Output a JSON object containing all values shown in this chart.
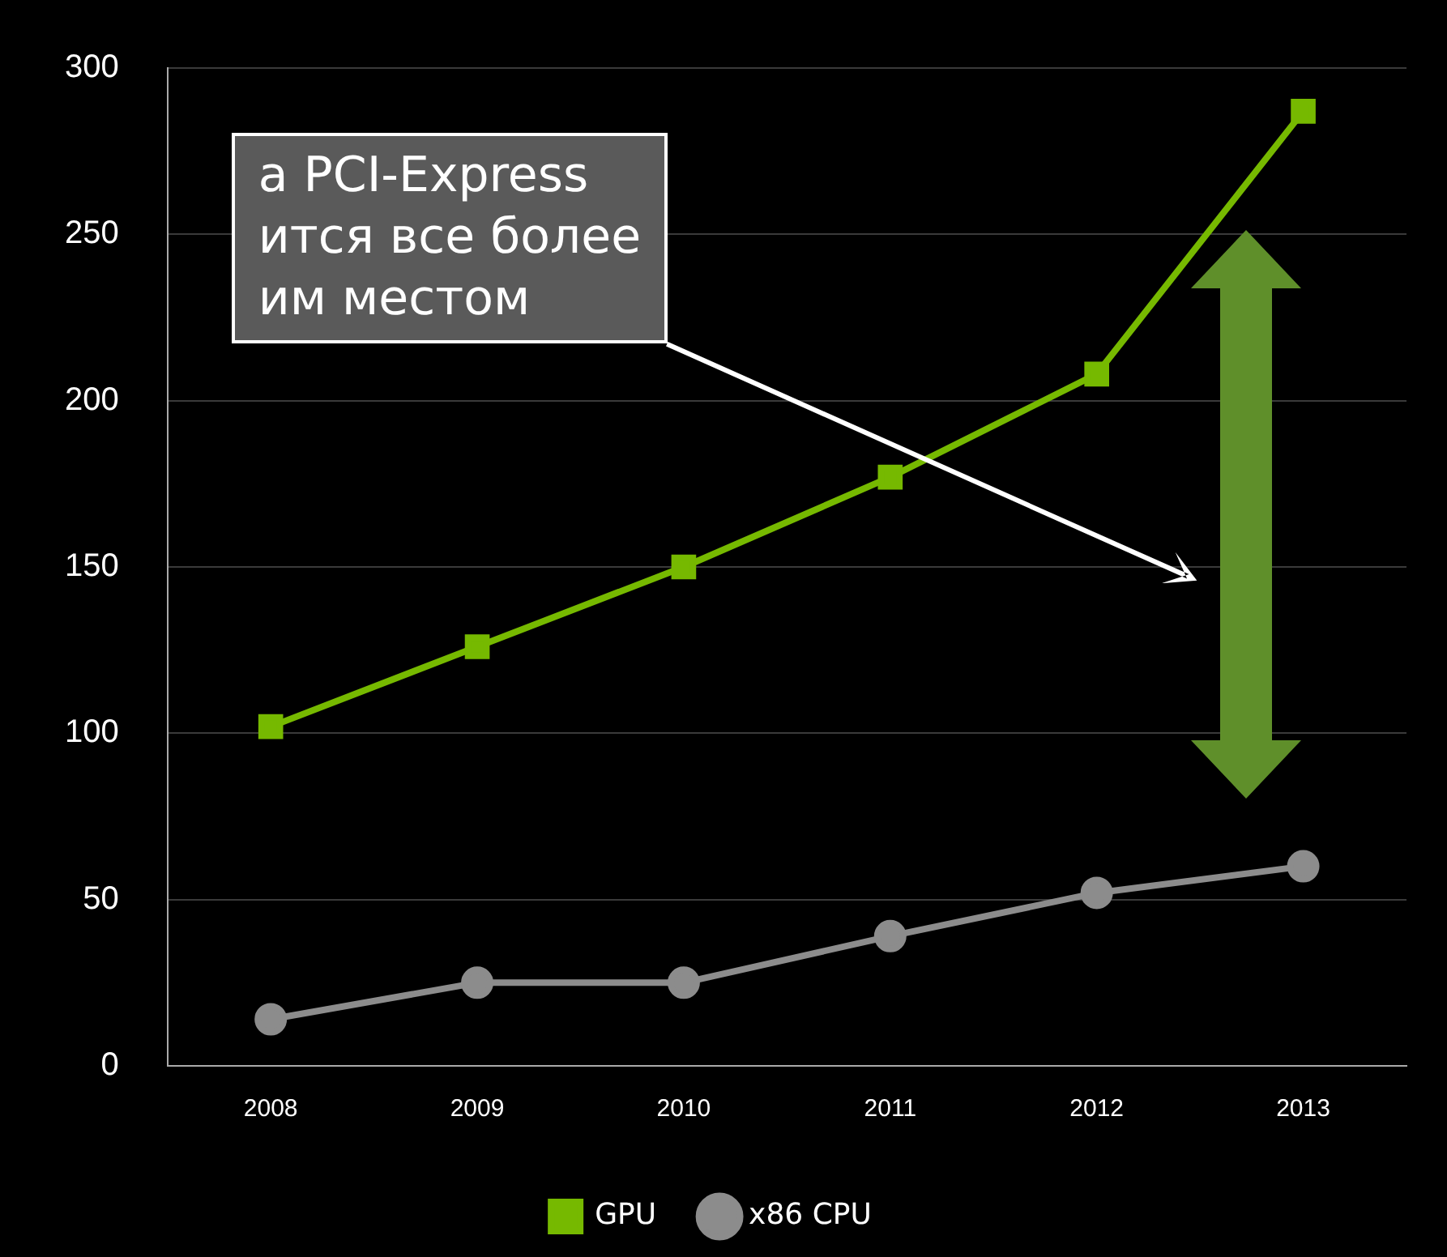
{
  "chart_data": {
    "type": "line",
    "categories": [
      "2008",
      "2009",
      "2010",
      "2011",
      "2012",
      "2013"
    ],
    "series": [
      {
        "name": "GPU",
        "color": "#76b900",
        "marker": "square",
        "values": [
          102,
          126,
          150,
          177,
          208,
          287
        ]
      },
      {
        "name": "x86 CPU",
        "color": "#8c8c8c",
        "marker": "circle",
        "values": [
          14,
          25,
          25,
          39,
          52,
          60
        ]
      }
    ],
    "ylim": [
      0,
      300
    ],
    "yticks": [
      0,
      50,
      100,
      150,
      200,
      250,
      300
    ],
    "grid": "y",
    "legend": "bottom",
    "annotations": [
      "а PCI-Express\nится все более\nим местом"
    ]
  }
}
